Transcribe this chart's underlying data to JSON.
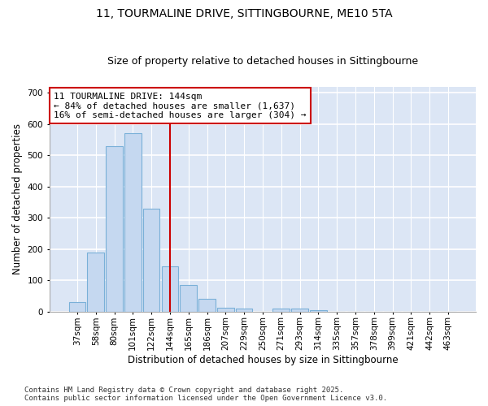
{
  "title_line1": "11, TOURMALINE DRIVE, SITTINGBOURNE, ME10 5TA",
  "title_line2": "Size of property relative to detached houses in Sittingbourne",
  "xlabel": "Distribution of detached houses by size in Sittingbourne",
  "ylabel": "Number of detached properties",
  "categories": [
    "37sqm",
    "58sqm",
    "80sqm",
    "101sqm",
    "122sqm",
    "144sqm",
    "165sqm",
    "186sqm",
    "207sqm",
    "229sqm",
    "250sqm",
    "271sqm",
    "293sqm",
    "314sqm",
    "335sqm",
    "357sqm",
    "378sqm",
    "399sqm",
    "421sqm",
    "442sqm",
    "463sqm"
  ],
  "values": [
    30,
    190,
    530,
    570,
    330,
    145,
    85,
    40,
    12,
    10,
    0,
    10,
    10,
    4,
    0,
    0,
    0,
    0,
    0,
    0,
    0
  ],
  "bar_color": "#c5d8f0",
  "bar_edge_color": "#7ab0d8",
  "highlight_color": "#cc0000",
  "annotation_text": "11 TOURMALINE DRIVE: 144sqm\n← 84% of detached houses are smaller (1,637)\n16% of semi-detached houses are larger (304) →",
  "annotation_box_color": "#cc0000",
  "ylim": [
    0,
    720
  ],
  "yticks": [
    0,
    100,
    200,
    300,
    400,
    500,
    600,
    700
  ],
  "background_color": "#dce6f5",
  "grid_color": "#ffffff",
  "fig_background": "#ffffff",
  "footer_line1": "Contains HM Land Registry data © Crown copyright and database right 2025.",
  "footer_line2": "Contains public sector information licensed under the Open Government Licence v3.0.",
  "title_fontsize": 10,
  "subtitle_fontsize": 9,
  "axis_label_fontsize": 8.5,
  "tick_fontsize": 7.5,
  "annotation_fontsize": 8,
  "footer_fontsize": 6.5
}
